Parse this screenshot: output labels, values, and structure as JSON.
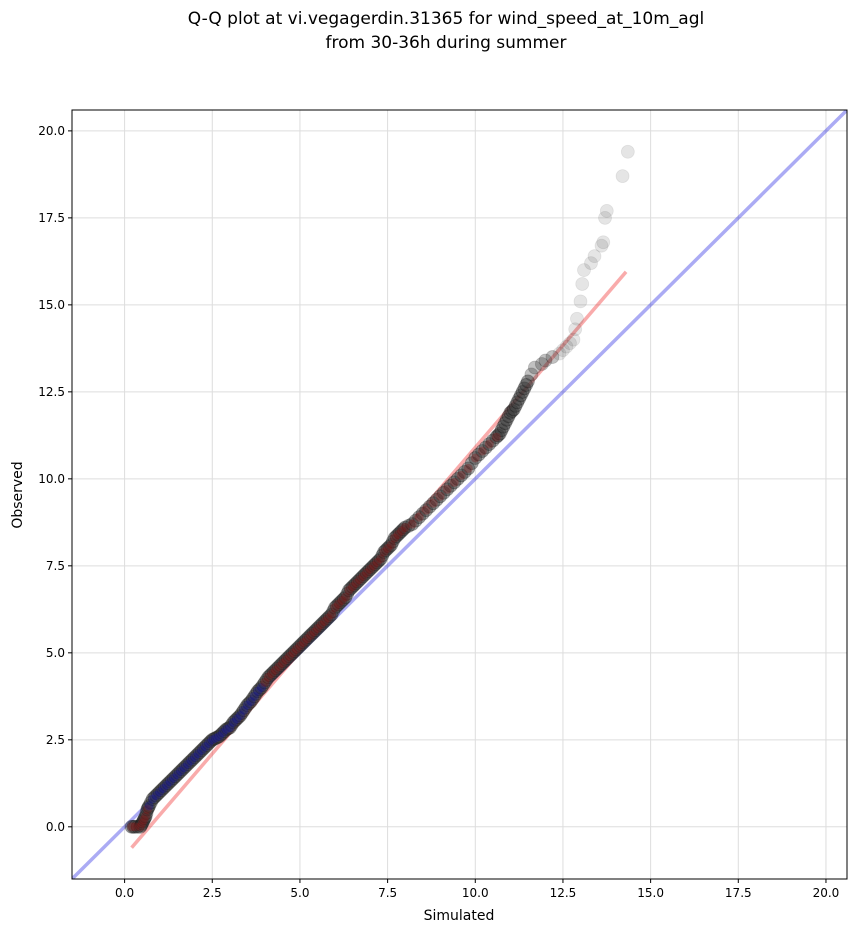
{
  "chart_data": {
    "type": "scatter",
    "title_line1": "Q-Q plot at vi.vegagerdin.31365 for wind_speed_at_10m_agl",
    "title_line2": "from 30-36h during summer",
    "xlabel": "Simulated",
    "ylabel": "Observed",
    "xlim": [
      -1.5,
      20.6
    ],
    "ylim": [
      -1.5,
      20.6
    ],
    "xticks": [
      "0.0",
      "2.5",
      "5.0",
      "7.5",
      "10.0",
      "12.5",
      "15.0",
      "17.5",
      "20.0"
    ],
    "yticks": [
      "0.0",
      "2.5",
      "5.0",
      "7.5",
      "10.0",
      "12.5",
      "15.0",
      "17.5",
      "20.0"
    ],
    "grid": true,
    "colors": {
      "identity_line": "#0000dd",
      "fit_line": "#ee2222",
      "points": "#333333"
    },
    "identity_line": {
      "x": [
        -1.5,
        20.6
      ],
      "y": [
        -1.5,
        20.6
      ]
    },
    "fit_line": {
      "x": [
        0.2,
        14.3
      ],
      "y": [
        -0.6,
        15.95
      ]
    },
    "series": [
      {
        "x": [
          0.2,
          0.3,
          0.45,
          0.5,
          0.55,
          0.6,
          0.65,
          0.7,
          0.8,
          0.9,
          1.0,
          1.1,
          1.2,
          1.3,
          1.4,
          1.5,
          1.6,
          1.7,
          1.8,
          1.9,
          2.0,
          2.1,
          2.2,
          2.3,
          2.4,
          2.5,
          2.6,
          2.7,
          2.8,
          2.9,
          3.0,
          3.1,
          3.2,
          3.3,
          3.4,
          3.5,
          3.6,
          3.7,
          3.8,
          3.9,
          4.0,
          4.1,
          4.2,
          4.3,
          4.4,
          4.5,
          4.6,
          4.7,
          4.8,
          4.9,
          5.0,
          5.1,
          5.2,
          5.3,
          5.4,
          5.5,
          5.6,
          5.7,
          5.8,
          5.9,
          6.0,
          6.1,
          6.2,
          6.3,
          6.4,
          6.5,
          6.6,
          6.7,
          6.8,
          6.9,
          7.0,
          7.1,
          7.2,
          7.3,
          7.4,
          7.5,
          7.6,
          7.7,
          7.8,
          7.9,
          8.0,
          8.2,
          8.4,
          8.6,
          8.8,
          9.0,
          9.2,
          9.4,
          9.6,
          9.8,
          10.0,
          10.2,
          10.4,
          10.6,
          10.7,
          10.8,
          10.9,
          11.0,
          11.1,
          11.2,
          11.3,
          11.4,
          11.5,
          11.6,
          11.7,
          11.9,
          12.0,
          12.2,
          12.4,
          12.5,
          12.6,
          12.7,
          12.8,
          12.85,
          12.9,
          13.0,
          13.05,
          13.1,
          13.3,
          13.4,
          13.6,
          13.65,
          13.7,
          13.75,
          14.2,
          14.35
        ],
        "y": [
          0.0,
          0.0,
          0.0,
          0.1,
          0.2,
          0.3,
          0.5,
          0.6,
          0.8,
          0.9,
          1.0,
          1.1,
          1.2,
          1.3,
          1.4,
          1.5,
          1.6,
          1.7,
          1.8,
          1.9,
          2.0,
          2.1,
          2.2,
          2.3,
          2.4,
          2.5,
          2.55,
          2.6,
          2.7,
          2.8,
          2.85,
          3.0,
          3.1,
          3.2,
          3.35,
          3.5,
          3.6,
          3.75,
          3.9,
          4.0,
          4.15,
          4.3,
          4.4,
          4.5,
          4.6,
          4.7,
          4.8,
          4.9,
          5.0,
          5.1,
          5.2,
          5.3,
          5.4,
          5.5,
          5.6,
          5.7,
          5.8,
          5.9,
          6.0,
          6.1,
          6.3,
          6.4,
          6.5,
          6.6,
          6.8,
          6.9,
          7.0,
          7.1,
          7.2,
          7.3,
          7.4,
          7.5,
          7.6,
          7.7,
          7.9,
          8.0,
          8.1,
          8.3,
          8.4,
          8.5,
          8.6,
          8.7,
          8.9,
          9.1,
          9.3,
          9.5,
          9.7,
          9.9,
          10.1,
          10.3,
          10.6,
          10.8,
          11.0,
          11.2,
          11.3,
          11.5,
          11.7,
          11.9,
          12.0,
          12.2,
          12.4,
          12.6,
          12.8,
          13.0,
          13.2,
          13.3,
          13.4,
          13.5,
          13.6,
          13.7,
          13.8,
          13.9,
          14.0,
          14.3,
          14.6,
          15.1,
          15.6,
          16.0,
          16.2,
          16.4,
          16.7,
          16.8,
          17.5,
          17.7,
          18.7,
          19.4
        ]
      }
    ]
  }
}
